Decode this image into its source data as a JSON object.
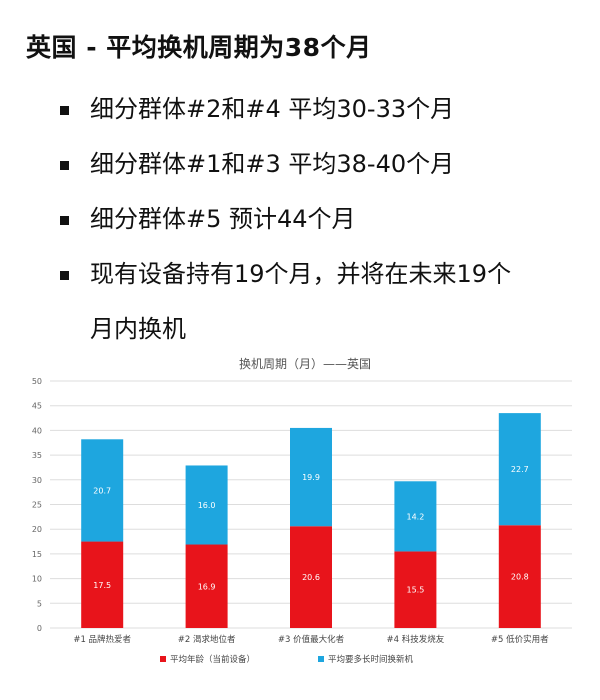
{
  "title": "英国 - 平均换机周期为38个月",
  "bullets": [
    "细分群体#2和#4 平均30-33个月",
    "细分群体#1和#3 平均38-40个月",
    "细分群体#5 预计44个月",
    "现有设备持有19个月，并将在未来19个",
    "月内换机"
  ],
  "chart_data": {
    "type": "bar",
    "stacked": true,
    "title": "换机周期（月）——英国",
    "categories": [
      "#1 品牌热爱者",
      "#2 渴求地位者",
      "#3 价值最大化者",
      "#4 科技发烧友",
      "#5 低价实用者"
    ],
    "series": [
      {
        "name": "平均年龄（当前设备）",
        "color": "#e8141b",
        "values": [
          17.5,
          16.9,
          20.6,
          15.5,
          20.8
        ]
      },
      {
        "name": "平均要多长时间换新机",
        "color": "#1ea6df",
        "values": [
          20.7,
          16.0,
          19.9,
          14.2,
          22.7
        ]
      }
    ],
    "ylim": [
      0,
      50
    ],
    "yticks": [
      "0",
      "5",
      "10",
      "15",
      "20",
      "25",
      "30",
      "35",
      "40",
      "45",
      "50"
    ],
    "grid": true,
    "legend": "bottom"
  }
}
